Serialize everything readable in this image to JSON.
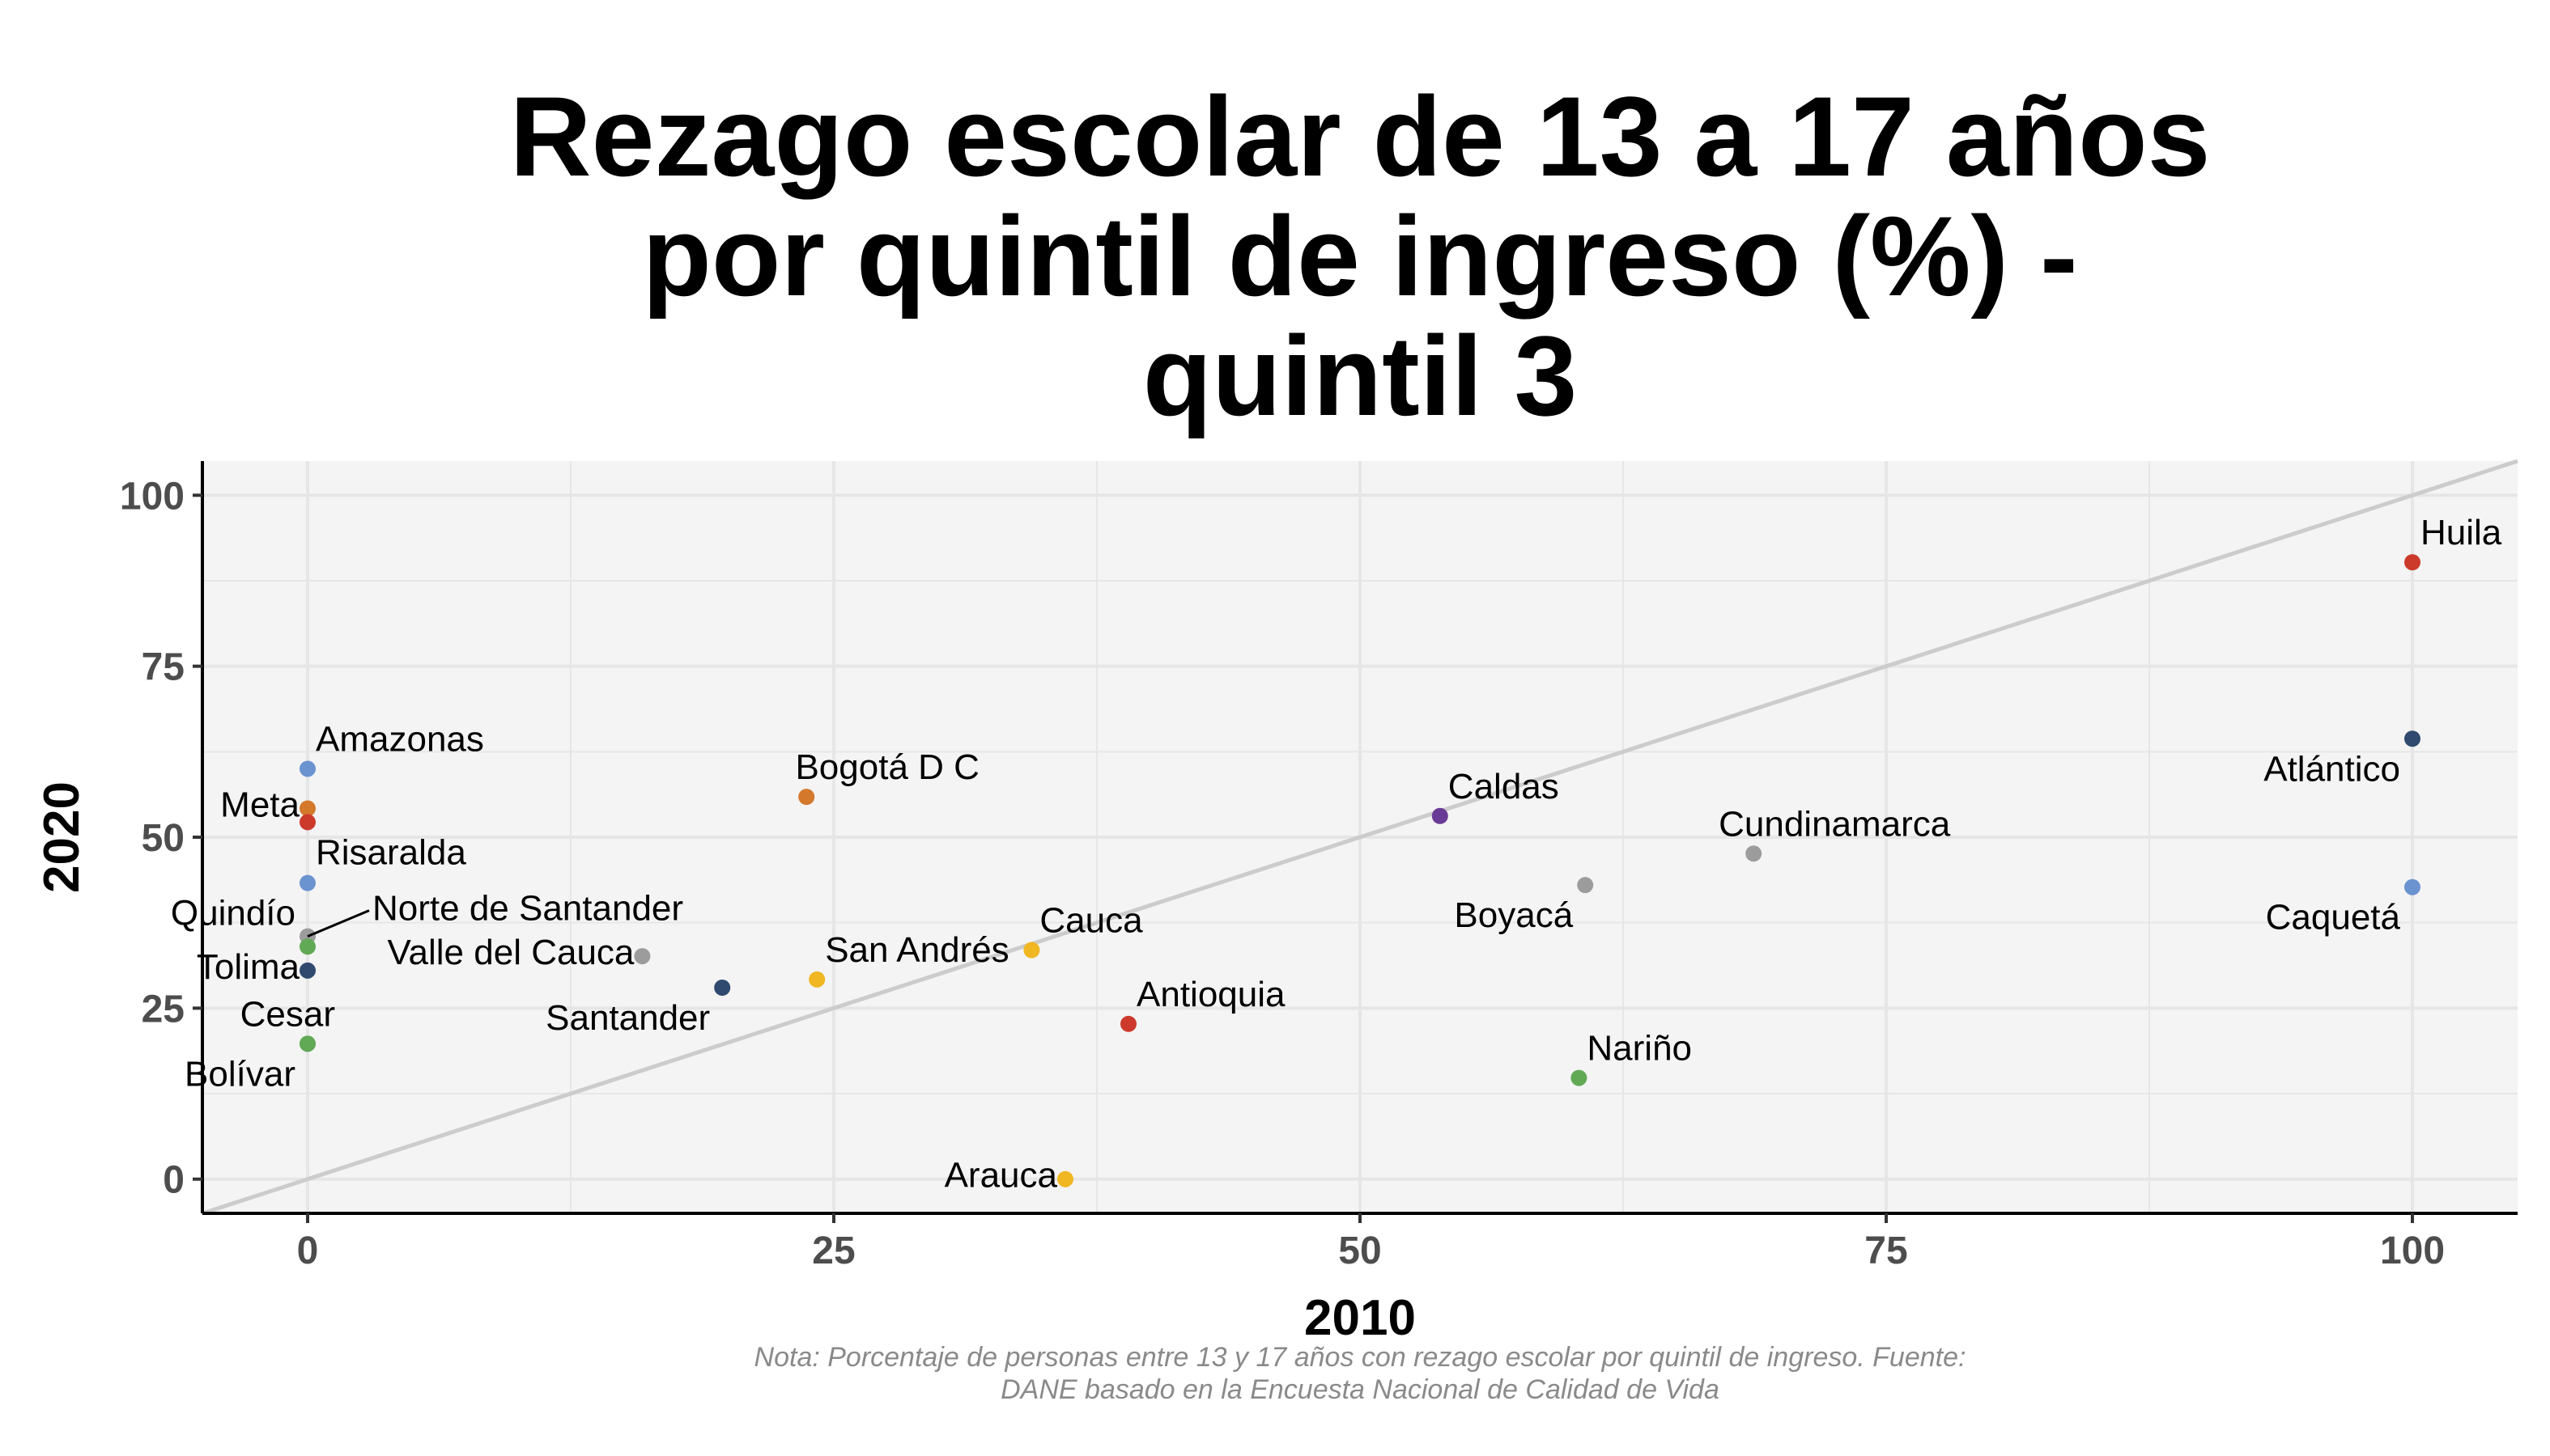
{
  "chart_data": {
    "type": "scatter",
    "title_lines": [
      "Rezago escolar de 13 a 17 años",
      "por quintil de ingreso (%) -",
      "quintil 3"
    ],
    "xlabel": "2010",
    "ylabel": "2020",
    "xlim": [
      -5,
      105
    ],
    "ylim": [
      -5,
      105
    ],
    "xticks": [
      0,
      25,
      50,
      75,
      100
    ],
    "yticks": [
      0,
      25,
      50,
      75,
      100
    ],
    "grid": true,
    "reference_line": "y = x",
    "caption_lines": [
      "Nota: Porcentaje de personas entre 13 y 17 años con rezago escolar por quintil de ingreso. Fuente:",
      "DANE basado en la Encuesta Nacional de Calidad de Vida"
    ],
    "colors": {
      "panel": "#f4f4f4",
      "grid": "#e6e6e6",
      "reference_line": "#cccccc",
      "red": "#cb3a2b",
      "blue": "#6b93d0",
      "orange": "#d4782c",
      "navy": "#2f4a6e",
      "gray": "#9c9c9c",
      "green": "#62a956",
      "yellow": "#f0b722",
      "purple": "#6a3b96"
    },
    "points": [
      {
        "label": "Huila",
        "x": 100,
        "y": 90.2,
        "color": "#cb3a2b",
        "pos": "ne"
      },
      {
        "label": "Atlántico",
        "x": 100,
        "y": 64.4,
        "color": "#2f4a6e",
        "pos": "sw"
      },
      {
        "label": "Caquetá",
        "x": 100,
        "y": 42.7,
        "color": "#6b93d0",
        "pos": "sw"
      },
      {
        "label": "Amazonas",
        "x": 0,
        "y": 60.0,
        "color": "#6b93d0",
        "pos": "ne"
      },
      {
        "label": "Meta",
        "x": 0,
        "y": 54.2,
        "color": "#d4782c",
        "pos": "w"
      },
      {
        "label": "Risaralda",
        "x": 0,
        "y": 52.2,
        "color": "#cb3a2b",
        "pos": "se"
      },
      {
        "label": "Quindío",
        "x": 0,
        "y": 43.3,
        "color": "#6b93d0",
        "pos": "sw"
      },
      {
        "label": "Norte de Santander",
        "x": 0,
        "y": 35.5,
        "color": "#9c9c9c",
        "pos": "leader"
      },
      {
        "label": "",
        "x": 0,
        "y": 34.0,
        "color": "#62a956",
        "pos": "none"
      },
      {
        "label": "Tolima",
        "x": 0,
        "y": 30.5,
        "color": "#2f4a6e",
        "pos": "w"
      },
      {
        "label": "Cesar",
        "x": 0,
        "y": 19.8,
        "color": "#62a956",
        "pos": "nw"
      },
      {
        "label": "Bolívar",
        "x": 0,
        "y": 19.8,
        "color": "#62a956",
        "pos": "sw"
      },
      {
        "label": "Bogotá D C",
        "x": 23.7,
        "y": 55.9,
        "color": "#d4782c",
        "pos": "n"
      },
      {
        "label": "Valle del Cauca",
        "x": 15.9,
        "y": 32.6,
        "color": "#9c9c9c",
        "pos": "w"
      },
      {
        "label": "Santander",
        "x": 19.7,
        "y": 28.0,
        "color": "#2f4a6e",
        "pos": "sw"
      },
      {
        "label": "San Andrés",
        "x": 24.2,
        "y": 29.2,
        "color": "#f0b722",
        "pos": "ne"
      },
      {
        "label": "Cauca",
        "x": 34.4,
        "y": 33.5,
        "color": "#f0b722",
        "pos": "ne"
      },
      {
        "label": "Antioquia",
        "x": 39.0,
        "y": 22.7,
        "color": "#cb3a2b",
        "pos": "ne"
      },
      {
        "label": "Arauca",
        "x": 36.0,
        "y": 0.0,
        "color": "#f0b722",
        "pos": "w"
      },
      {
        "label": "Caldas",
        "x": 53.8,
        "y": 53.1,
        "color": "#6a3b96",
        "pos": "ne"
      },
      {
        "label": "Boyacá",
        "x": 60.7,
        "y": 43.0,
        "color": "#9c9c9c",
        "pos": "sw"
      },
      {
        "label": "Cundinamarca",
        "x": 68.7,
        "y": 47.6,
        "color": "#9c9c9c",
        "pos": "n"
      },
      {
        "label": "Nariño",
        "x": 60.4,
        "y": 14.8,
        "color": "#62a956",
        "pos": "ne"
      }
    ]
  }
}
